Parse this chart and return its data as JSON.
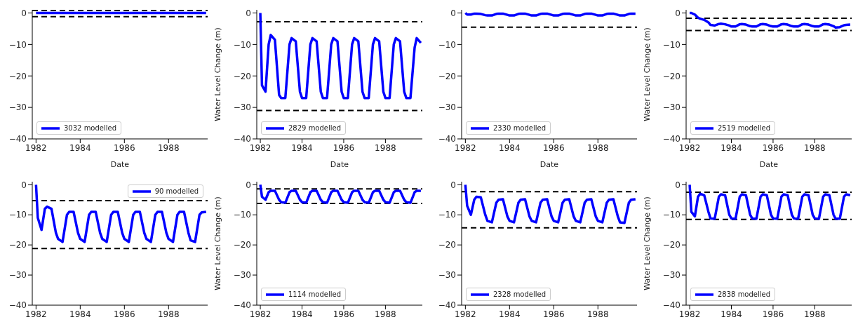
{
  "chart_data": [
    {
      "type": "line",
      "xlabel": "Date",
      "legend": "bottom left",
      "x": [
        1982,
        1982.08,
        1982.25,
        1982.4,
        1982.5,
        1982.7,
        1982.9,
        1983,
        1983.2,
        1983.4,
        1983.5,
        1983.7,
        1983.9,
        1984,
        1984.2,
        1984.4,
        1984.5,
        1984.7,
        1984.9,
        1985,
        1985.2,
        1985.4,
        1985.5,
        1985.7,
        1985.9,
        1986,
        1986.2,
        1986.4,
        1986.5,
        1986.7,
        1986.9,
        1987,
        1987.2,
        1987.4,
        1987.5,
        1987.7,
        1987.9,
        1988,
        1988.2,
        1988.4,
        1988.5,
        1988.7,
        1988.9,
        1989,
        1989.2,
        1989.4,
        1989.5,
        1989.7
      ],
      "xlim": [
        1981.83,
        1989.77
      ],
      "xticks": [
        1982,
        1984,
        1986,
        1988
      ],
      "ylim": [
        -40,
        1
      ],
      "yticks": [
        0,
        -10,
        -20,
        -30,
        -40
      ],
      "series": [
        {
          "name": "3032 modelled",
          "color": "#0000ff",
          "values": [
            0,
            0,
            0,
            0,
            0,
            0,
            0,
            0,
            0,
            0,
            0,
            0,
            0,
            0,
            0,
            0,
            0,
            0,
            0,
            0,
            0,
            0,
            0,
            0,
            0,
            0,
            0,
            0,
            0,
            0,
            0,
            0,
            0,
            0,
            0,
            0,
            0,
            0,
            0,
            0,
            0,
            0,
            0,
            0,
            0,
            0,
            0,
            0
          ]
        }
      ],
      "ref_lines": [
        {
          "axis": "y",
          "value": 0.8,
          "color": "#000000",
          "line_style": "dashed"
        },
        {
          "axis": "y",
          "value": -1.2,
          "color": "#000000",
          "line_style": "dashed"
        }
      ]
    },
    {
      "type": "line",
      "xlabel": "Date",
      "ylabel": "Water Level Change (m)",
      "legend": "bottom left",
      "x": [
        1982,
        1982.08,
        1982.25,
        1982.4,
        1982.5,
        1982.7,
        1982.9,
        1983,
        1983.2,
        1983.4,
        1983.5,
        1983.7,
        1983.9,
        1984,
        1984.2,
        1984.4,
        1984.5,
        1984.7,
        1984.9,
        1985,
        1985.2,
        1985.4,
        1985.5,
        1985.7,
        1985.9,
        1986,
        1986.2,
        1986.4,
        1986.5,
        1986.7,
        1986.9,
        1987,
        1987.2,
        1987.4,
        1987.5,
        1987.7,
        1987.9,
        1988,
        1988.2,
        1988.4,
        1988.5,
        1988.7,
        1988.9,
        1989,
        1989.2,
        1989.4,
        1989.5,
        1989.7
      ],
      "xlim": [
        1981.83,
        1989.77
      ],
      "xticks": [
        1982,
        1984,
        1986,
        1988
      ],
      "ylim": [
        -40,
        1
      ],
      "yticks": [
        0,
        -10,
        -20,
        -30,
        -40
      ],
      "series": [
        {
          "name": "2829 modelled",
          "color": "#0000ff",
          "values": [
            0,
            -23,
            -25,
            -10,
            -7,
            -8.5,
            -26,
            -27,
            -27,
            -10,
            -8,
            -9,
            -25,
            -27,
            -27,
            -10,
            -8,
            -9,
            -25,
            -27,
            -27,
            -10,
            -8,
            -9,
            -25,
            -27,
            -27,
            -10,
            -8,
            -9,
            -25,
            -27,
            -27,
            -10,
            -8,
            -9,
            -25,
            -27,
            -27,
            -10,
            -8,
            -9,
            -25,
            -27,
            -27,
            -11,
            -8,
            -9.5
          ]
        }
      ],
      "ref_lines": [
        {
          "axis": "y",
          "value": -2.8,
          "color": "#000000",
          "line_style": "dashed"
        },
        {
          "axis": "y",
          "value": -31,
          "color": "#000000",
          "line_style": "dashed"
        }
      ]
    },
    {
      "type": "line",
      "xlabel": "Date",
      "legend": "bottom left",
      "x": [
        1982,
        1982.08,
        1982.25,
        1982.4,
        1982.5,
        1982.7,
        1982.9,
        1983,
        1983.2,
        1983.4,
        1983.5,
        1983.7,
        1983.9,
        1984,
        1984.2,
        1984.4,
        1984.5,
        1984.7,
        1984.9,
        1985,
        1985.2,
        1985.4,
        1985.5,
        1985.7,
        1985.9,
        1986,
        1986.2,
        1986.4,
        1986.5,
        1986.7,
        1986.9,
        1987,
        1987.2,
        1987.4,
        1987.5,
        1987.7,
        1987.9,
        1988,
        1988.2,
        1988.4,
        1988.5,
        1988.7,
        1988.9,
        1989,
        1989.2,
        1989.4,
        1989.5,
        1989.7
      ],
      "xlim": [
        1981.83,
        1989.77
      ],
      "xticks": [
        1982,
        1984,
        1986,
        1988
      ],
      "ylim": [
        -40,
        1
      ],
      "yticks": [
        0,
        -10,
        -20,
        -30,
        -40
      ],
      "series": [
        {
          "name": "2330 modelled",
          "color": "#0000ff",
          "values": [
            0,
            -0.5,
            -0.5,
            -0.2,
            -0.2,
            -0.3,
            -0.7,
            -0.8,
            -0.8,
            -0.3,
            -0.2,
            -0.2,
            -0.6,
            -0.8,
            -0.8,
            -0.3,
            -0.2,
            -0.2,
            -0.6,
            -0.8,
            -0.8,
            -0.3,
            -0.2,
            -0.2,
            -0.6,
            -0.8,
            -0.8,
            -0.3,
            -0.2,
            -0.2,
            -0.6,
            -0.8,
            -0.8,
            -0.3,
            -0.2,
            -0.2,
            -0.6,
            -0.8,
            -0.8,
            -0.3,
            -0.2,
            -0.2,
            -0.6,
            -0.8,
            -0.8,
            -0.3,
            -0.2,
            -0.2
          ]
        }
      ],
      "ref_lines": [
        {
          "axis": "y",
          "value": -4.5,
          "color": "#000000",
          "line_style": "dashed"
        }
      ]
    },
    {
      "type": "line",
      "xlabel": "Date",
      "ylabel": "Water Level Change (m)",
      "legend": "bottom left",
      "x": [
        1982,
        1982.08,
        1982.25,
        1982.4,
        1982.5,
        1982.7,
        1982.9,
        1983,
        1983.2,
        1983.4,
        1983.5,
        1983.7,
        1983.9,
        1984,
        1984.2,
        1984.4,
        1984.5,
        1984.7,
        1984.9,
        1985,
        1985.2,
        1985.4,
        1985.5,
        1985.7,
        1985.9,
        1986,
        1986.2,
        1986.4,
        1986.5,
        1986.7,
        1986.9,
        1987,
        1987.2,
        1987.4,
        1987.5,
        1987.7,
        1987.9,
        1988,
        1988.2,
        1988.4,
        1988.5,
        1988.7,
        1988.9,
        1989,
        1989.2,
        1989.4,
        1989.5,
        1989.7
      ],
      "xlim": [
        1981.83,
        1989.77
      ],
      "xticks": [
        1982,
        1984,
        1986,
        1988
      ],
      "ylim": [
        -40,
        1
      ],
      "yticks": [
        0,
        -10,
        -20,
        -30,
        -40
      ],
      "series": [
        {
          "name": "2519 modelled",
          "color": "#0000ff",
          "values": [
            0,
            0,
            -0.5,
            -1.5,
            -1.8,
            -2.2,
            -3,
            -3.8,
            -4,
            -3.5,
            -3.4,
            -3.6,
            -4,
            -4.3,
            -4.3,
            -3.6,
            -3.5,
            -3.7,
            -4.2,
            -4.3,
            -4.3,
            -3.6,
            -3.5,
            -3.7,
            -4.2,
            -4.3,
            -4.3,
            -3.6,
            -3.5,
            -3.7,
            -4.2,
            -4.3,
            -4.3,
            -3.6,
            -3.5,
            -3.7,
            -4.2,
            -4.3,
            -4.3,
            -3.6,
            -3.5,
            -3.7,
            -4.2,
            -4.6,
            -4.5,
            -3.9,
            -3.8,
            -3.7
          ]
        }
      ],
      "ref_lines": [
        {
          "axis": "y",
          "value": -1.7,
          "color": "#000000",
          "line_style": "dashed"
        },
        {
          "axis": "y",
          "value": -5.6,
          "color": "#000000",
          "line_style": "dashed"
        }
      ]
    },
    {
      "type": "line",
      "legend": "top right",
      "x": [
        1982,
        1982.08,
        1982.25,
        1982.4,
        1982.5,
        1982.7,
        1982.9,
        1983,
        1983.2,
        1983.4,
        1983.5,
        1983.7,
        1983.9,
        1984,
        1984.2,
        1984.4,
        1984.5,
        1984.7,
        1984.9,
        1985,
        1985.2,
        1985.4,
        1985.5,
        1985.7,
        1985.9,
        1986,
        1986.2,
        1986.4,
        1986.5,
        1986.7,
        1986.9,
        1987,
        1987.2,
        1987.4,
        1987.5,
        1987.7,
        1987.9,
        1988,
        1988.2,
        1988.4,
        1988.5,
        1988.7,
        1988.9,
        1989,
        1989.2,
        1989.4,
        1989.5,
        1989.7
      ],
      "xlim": [
        1981.83,
        1989.77
      ],
      "xticks": [
        1982,
        1984,
        1986,
        1988
      ],
      "ylim": [
        -40,
        1
      ],
      "yticks": [
        0,
        -10,
        -20,
        -30,
        -40
      ],
      "series": [
        {
          "name": "90 modelled",
          "color": "#0000ff",
          "values": [
            0,
            -11,
            -15,
            -8,
            -7.3,
            -8,
            -16,
            -18,
            -19,
            -10,
            -9,
            -9,
            -16,
            -18,
            -19,
            -10,
            -9,
            -9,
            -16,
            -18,
            -19,
            -10,
            -9,
            -9,
            -16,
            -18,
            -19,
            -10,
            -9,
            -9,
            -16,
            -18,
            -19,
            -10,
            -9,
            -9,
            -16,
            -18,
            -19,
            -10,
            -9,
            -9,
            -16,
            -18.5,
            -19,
            -10,
            -9.2,
            -9
          ]
        }
      ],
      "ref_lines": [
        {
          "axis": "y",
          "value": -5.3,
          "color": "#000000",
          "line_style": "dashed"
        },
        {
          "axis": "y",
          "value": -21.2,
          "color": "#000000",
          "line_style": "dashed"
        }
      ]
    },
    {
      "type": "line",
      "ylabel": "Water Level Change (m)",
      "legend": "bottom left",
      "x": [
        1982,
        1982.08,
        1982.25,
        1982.4,
        1982.5,
        1982.7,
        1982.9,
        1983,
        1983.2,
        1983.4,
        1983.5,
        1983.7,
        1983.9,
        1984,
        1984.2,
        1984.4,
        1984.5,
        1984.7,
        1984.9,
        1985,
        1985.2,
        1985.4,
        1985.5,
        1985.7,
        1985.9,
        1986,
        1986.2,
        1986.4,
        1986.5,
        1986.7,
        1986.9,
        1987,
        1987.2,
        1987.4,
        1987.5,
        1987.7,
        1987.9,
        1988,
        1988.2,
        1988.4,
        1988.5,
        1988.7,
        1988.9,
        1989,
        1989.2,
        1989.4,
        1989.5,
        1989.7
      ],
      "xlim": [
        1981.83,
        1989.77
      ],
      "xticks": [
        1982,
        1984,
        1986,
        1988
      ],
      "ylim": [
        -40,
        1
      ],
      "yticks": [
        0,
        -10,
        -20,
        -30,
        -40
      ],
      "series": [
        {
          "name": "1114 modelled",
          "color": "#0000ff",
          "values": [
            0,
            -4,
            -5,
            -2.5,
            -2,
            -2,
            -5,
            -5.8,
            -6,
            -2.5,
            -2,
            -2,
            -5,
            -5.8,
            -6,
            -2.5,
            -2,
            -2,
            -5,
            -5.8,
            -6,
            -2.5,
            -2,
            -2,
            -5,
            -5.8,
            -6,
            -2.5,
            -2,
            -2,
            -5,
            -5.8,
            -6,
            -2.5,
            -2,
            -2,
            -5,
            -5.8,
            -6,
            -2.5,
            -2,
            -2,
            -5,
            -5.8,
            -6,
            -2.5,
            -2,
            -2
          ]
        }
      ],
      "ref_lines": [
        {
          "axis": "y",
          "value": -1.4,
          "color": "#000000",
          "line_style": "dashed"
        },
        {
          "axis": "y",
          "value": -6.2,
          "color": "#000000",
          "line_style": "dashed"
        }
      ]
    },
    {
      "type": "line",
      "legend": "bottom left",
      "x": [
        1982,
        1982.08,
        1982.25,
        1982.4,
        1982.5,
        1982.7,
        1982.9,
        1983,
        1983.2,
        1983.4,
        1983.5,
        1983.7,
        1983.9,
        1984,
        1984.2,
        1984.4,
        1984.5,
        1984.7,
        1984.9,
        1985,
        1985.2,
        1985.4,
        1985.5,
        1985.7,
        1985.9,
        1986,
        1986.2,
        1986.4,
        1986.5,
        1986.7,
        1986.9,
        1987,
        1987.2,
        1987.4,
        1987.5,
        1987.7,
        1987.9,
        1988,
        1988.2,
        1988.4,
        1988.5,
        1988.7,
        1988.9,
        1989,
        1989.2,
        1989.4,
        1989.5,
        1989.7
      ],
      "xlim": [
        1981.83,
        1989.77
      ],
      "xticks": [
        1982,
        1984,
        1986,
        1988
      ],
      "ylim": [
        -40,
        1
      ],
      "yticks": [
        0,
        -10,
        -20,
        -30,
        -40
      ],
      "series": [
        {
          "name": "2328 modelled",
          "color": "#0000ff",
          "values": [
            0,
            -7,
            -10,
            -5,
            -4,
            -4.2,
            -10,
            -12,
            -12.5,
            -6,
            -5,
            -4.8,
            -10.5,
            -12,
            -12.5,
            -6,
            -5,
            -4.8,
            -10.5,
            -12,
            -12.5,
            -6,
            -5,
            -4.8,
            -10.5,
            -12,
            -12.5,
            -6,
            -5,
            -4.8,
            -10.5,
            -12,
            -12.5,
            -6,
            -5,
            -4.8,
            -10.5,
            -12,
            -12.5,
            -6,
            -5,
            -4.8,
            -10.5,
            -12.5,
            -12.7,
            -6,
            -5,
            -4.8
          ]
        }
      ],
      "ref_lines": [
        {
          "axis": "y",
          "value": -2.3,
          "color": "#000000",
          "line_style": "dashed"
        },
        {
          "axis": "y",
          "value": -14.3,
          "color": "#000000",
          "line_style": "dashed"
        }
      ]
    },
    {
      "type": "line",
      "ylabel": "Water Level Change (m)",
      "legend": "bottom left",
      "x": [
        1982,
        1982.08,
        1982.25,
        1982.4,
        1982.5,
        1982.7,
        1982.9,
        1983,
        1983.2,
        1983.4,
        1983.5,
        1983.7,
        1983.9,
        1984,
        1984.2,
        1984.4,
        1984.5,
        1984.7,
        1984.9,
        1985,
        1985.2,
        1985.4,
        1985.5,
        1985.7,
        1985.9,
        1986,
        1986.2,
        1986.4,
        1986.5,
        1986.7,
        1986.9,
        1987,
        1987.2,
        1987.4,
        1987.5,
        1987.7,
        1987.9,
        1988,
        1988.2,
        1988.4,
        1988.5,
        1988.7,
        1988.9,
        1989,
        1989.2,
        1989.4,
        1989.5,
        1989.7
      ],
      "xlim": [
        1981.83,
        1989.77
      ],
      "xticks": [
        1982,
        1984,
        1986,
        1988
      ],
      "ylim": [
        -40,
        1
      ],
      "yticks": [
        0,
        -10,
        -20,
        -30,
        -40
      ],
      "series": [
        {
          "name": "2838 modelled",
          "color": "#0000ff",
          "values": [
            0,
            -9,
            -10.5,
            -4,
            -3,
            -3.5,
            -9,
            -11.2,
            -11.3,
            -4,
            -3.2,
            -3.5,
            -10,
            -11.2,
            -11.3,
            -4,
            -3.2,
            -3.5,
            -10,
            -11.2,
            -11.3,
            -4,
            -3.2,
            -3.5,
            -10,
            -11.2,
            -11.3,
            -4,
            -3.2,
            -3.5,
            -10,
            -11.2,
            -11.3,
            -4,
            -3.2,
            -3.5,
            -10,
            -11.2,
            -11.3,
            -4,
            -3.2,
            -3.5,
            -10,
            -11.3,
            -11.3,
            -4,
            -3.2,
            -3.5
          ]
        }
      ],
      "ref_lines": [
        {
          "axis": "y",
          "value": -2.5,
          "color": "#000000",
          "line_style": "dashed"
        },
        {
          "axis": "y",
          "value": -11.5,
          "color": "#000000",
          "line_style": "dashed"
        }
      ]
    }
  ]
}
